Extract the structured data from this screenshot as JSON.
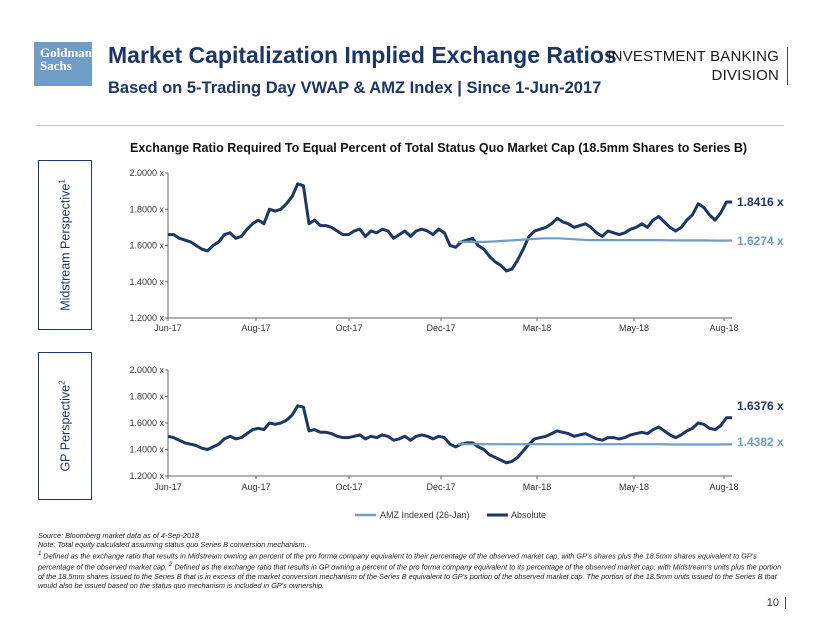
{
  "header": {
    "logo_line1": "Goldman",
    "logo_line2": "Sachs",
    "title": "Market Capitalization Implied Exchange Ratios",
    "subtitle": "Based on 5-Trading Day VWAP & AMZ Index | Since 1-Jun-2017",
    "division_line1": "INVESTMENT BANKING",
    "division_line2": "DIVISION"
  },
  "chart_title": "Exchange Ratio Required To Equal Percent of Total Status Quo Market Cap (18.5mm Shares to Series B)",
  "colors": {
    "absolute": "#1c3665",
    "amz": "#6f9dc8",
    "brand": "#6f9dc8"
  },
  "chart_data": [
    {
      "type": "line",
      "panel_label": "Midstream Perspective",
      "panel_label_sup": "1",
      "x_ticks": [
        "Jun-17",
        "Aug-17",
        "Oct-17",
        "Dec-17",
        "Mar-18",
        "May-18",
        "Aug-18"
      ],
      "y_ticks": [
        "2.0000 x",
        "1.8000 x",
        "1.6000 x",
        "1.4000 x",
        "1.2000 x"
      ],
      "ylim": [
        1.2,
        2.0
      ],
      "series": [
        {
          "name": "Absolute",
          "color": "#1c3665",
          "end_label": "1.8416 x",
          "values": [
            1.66,
            1.66,
            1.64,
            1.63,
            1.62,
            1.6,
            1.58,
            1.57,
            1.6,
            1.62,
            1.66,
            1.67,
            1.64,
            1.65,
            1.69,
            1.72,
            1.74,
            1.72,
            1.8,
            1.79,
            1.8,
            1.83,
            1.87,
            1.94,
            1.93,
            1.72,
            1.74,
            1.71,
            1.71,
            1.7,
            1.68,
            1.66,
            1.66,
            1.68,
            1.69,
            1.65,
            1.68,
            1.67,
            1.69,
            1.68,
            1.64,
            1.66,
            1.68,
            1.65,
            1.68,
            1.69,
            1.68,
            1.66,
            1.69,
            1.67,
            1.6,
            1.59,
            1.62,
            1.63,
            1.64,
            1.6,
            1.58,
            1.54,
            1.51,
            1.49,
            1.46,
            1.47,
            1.52,
            1.58,
            1.65,
            1.68,
            1.69,
            1.7,
            1.72,
            1.75,
            1.73,
            1.72,
            1.7,
            1.71,
            1.72,
            1.7,
            1.67,
            1.65,
            1.68,
            1.67,
            1.66,
            1.67,
            1.69,
            1.7,
            1.72,
            1.7,
            1.74,
            1.76,
            1.73,
            1.7,
            1.68,
            1.7,
            1.74,
            1.77,
            1.83,
            1.81,
            1.77,
            1.74,
            1.78,
            1.84,
            1.84
          ]
        },
        {
          "name": "AMZ Indexed (26-Jan)",
          "color": "#6f9dc8",
          "end_label": "1.6274 x",
          "values": [
            1.62,
            1.62,
            1.62,
            1.625,
            1.63,
            1.635,
            1.64,
            1.64,
            1.635,
            1.63,
            1.63,
            1.63,
            1.63,
            1.63,
            1.63,
            1.628,
            1.628,
            1.628,
            1.627,
            1.6274
          ]
        }
      ]
    },
    {
      "type": "line",
      "panel_label": "GP Perspective",
      "panel_label_sup": "2",
      "x_ticks": [
        "Jun-17",
        "Aug-17",
        "Oct-17",
        "Dec-17",
        "Mar-18",
        "May-18",
        "Aug-18"
      ],
      "y_ticks": [
        "2.0000 x",
        "1.8000 x",
        "1.6000 x",
        "1.4000 x",
        "1.2000 x"
      ],
      "ylim": [
        1.2,
        2.0
      ],
      "series": [
        {
          "name": "Absolute",
          "color": "#1c3665",
          "end_label": "1.6376 x",
          "values": [
            1.5,
            1.49,
            1.47,
            1.45,
            1.44,
            1.43,
            1.41,
            1.4,
            1.42,
            1.44,
            1.48,
            1.5,
            1.48,
            1.49,
            1.52,
            1.55,
            1.56,
            1.55,
            1.6,
            1.59,
            1.6,
            1.62,
            1.66,
            1.73,
            1.72,
            1.54,
            1.55,
            1.53,
            1.53,
            1.52,
            1.5,
            1.49,
            1.49,
            1.5,
            1.51,
            1.48,
            1.5,
            1.49,
            1.51,
            1.5,
            1.47,
            1.48,
            1.5,
            1.47,
            1.5,
            1.51,
            1.5,
            1.48,
            1.5,
            1.49,
            1.44,
            1.42,
            1.44,
            1.45,
            1.45,
            1.42,
            1.4,
            1.36,
            1.34,
            1.32,
            1.3,
            1.31,
            1.34,
            1.39,
            1.44,
            1.48,
            1.49,
            1.5,
            1.52,
            1.54,
            1.53,
            1.52,
            1.5,
            1.51,
            1.52,
            1.5,
            1.48,
            1.47,
            1.49,
            1.49,
            1.48,
            1.49,
            1.51,
            1.52,
            1.53,
            1.52,
            1.55,
            1.57,
            1.54,
            1.51,
            1.49,
            1.51,
            1.54,
            1.56,
            1.6,
            1.59,
            1.56,
            1.55,
            1.58,
            1.64,
            1.64
          ]
        },
        {
          "name": "AMZ Indexed (26-Jan)",
          "color": "#6f9dc8",
          "end_label": "1.4382 x",
          "values": [
            1.44,
            1.44,
            1.44,
            1.44,
            1.44,
            1.44,
            1.44,
            1.44,
            1.44,
            1.44,
            1.44,
            1.44,
            1.44,
            1.44,
            1.44,
            1.438,
            1.438,
            1.438,
            1.438,
            1.4382
          ]
        }
      ]
    }
  ],
  "legend": {
    "amz": "AMZ Indexed (26-Jan)",
    "absolute": "Absolute"
  },
  "footnotes": {
    "source": "Source: Bloomberg market data as of 4-Sep-2018",
    "note": "Note: Total equity calculated assuming status quo Series B conversion mechanism.",
    "fn1_mark": "1",
    "fn1": "Defined as the exchange ratio that results in Midstream owning an percent of the pro forma company equivalent to their percentage of the observed market cap, with GP's shares plus the 18.5mm shares equivalent to GP's percentage of the observed market cap.",
    "fn2_mark": "2",
    "fn2": "Defined as the exchange ratio that results in GP owning a percent of the pro forma company equivalent to its percentage of the observed market cap, with Midstream's units plus the portion of the 18.5mm shares issued to the Series B that is in excess of the market conversion mechanism of the Series B equivalent to GP's portion of the observed market cap. The portion of the 18.5mm units issued to the Series B that would also be issued based on the status quo mechanism is included in GP's ownership."
  },
  "page_number": "10"
}
